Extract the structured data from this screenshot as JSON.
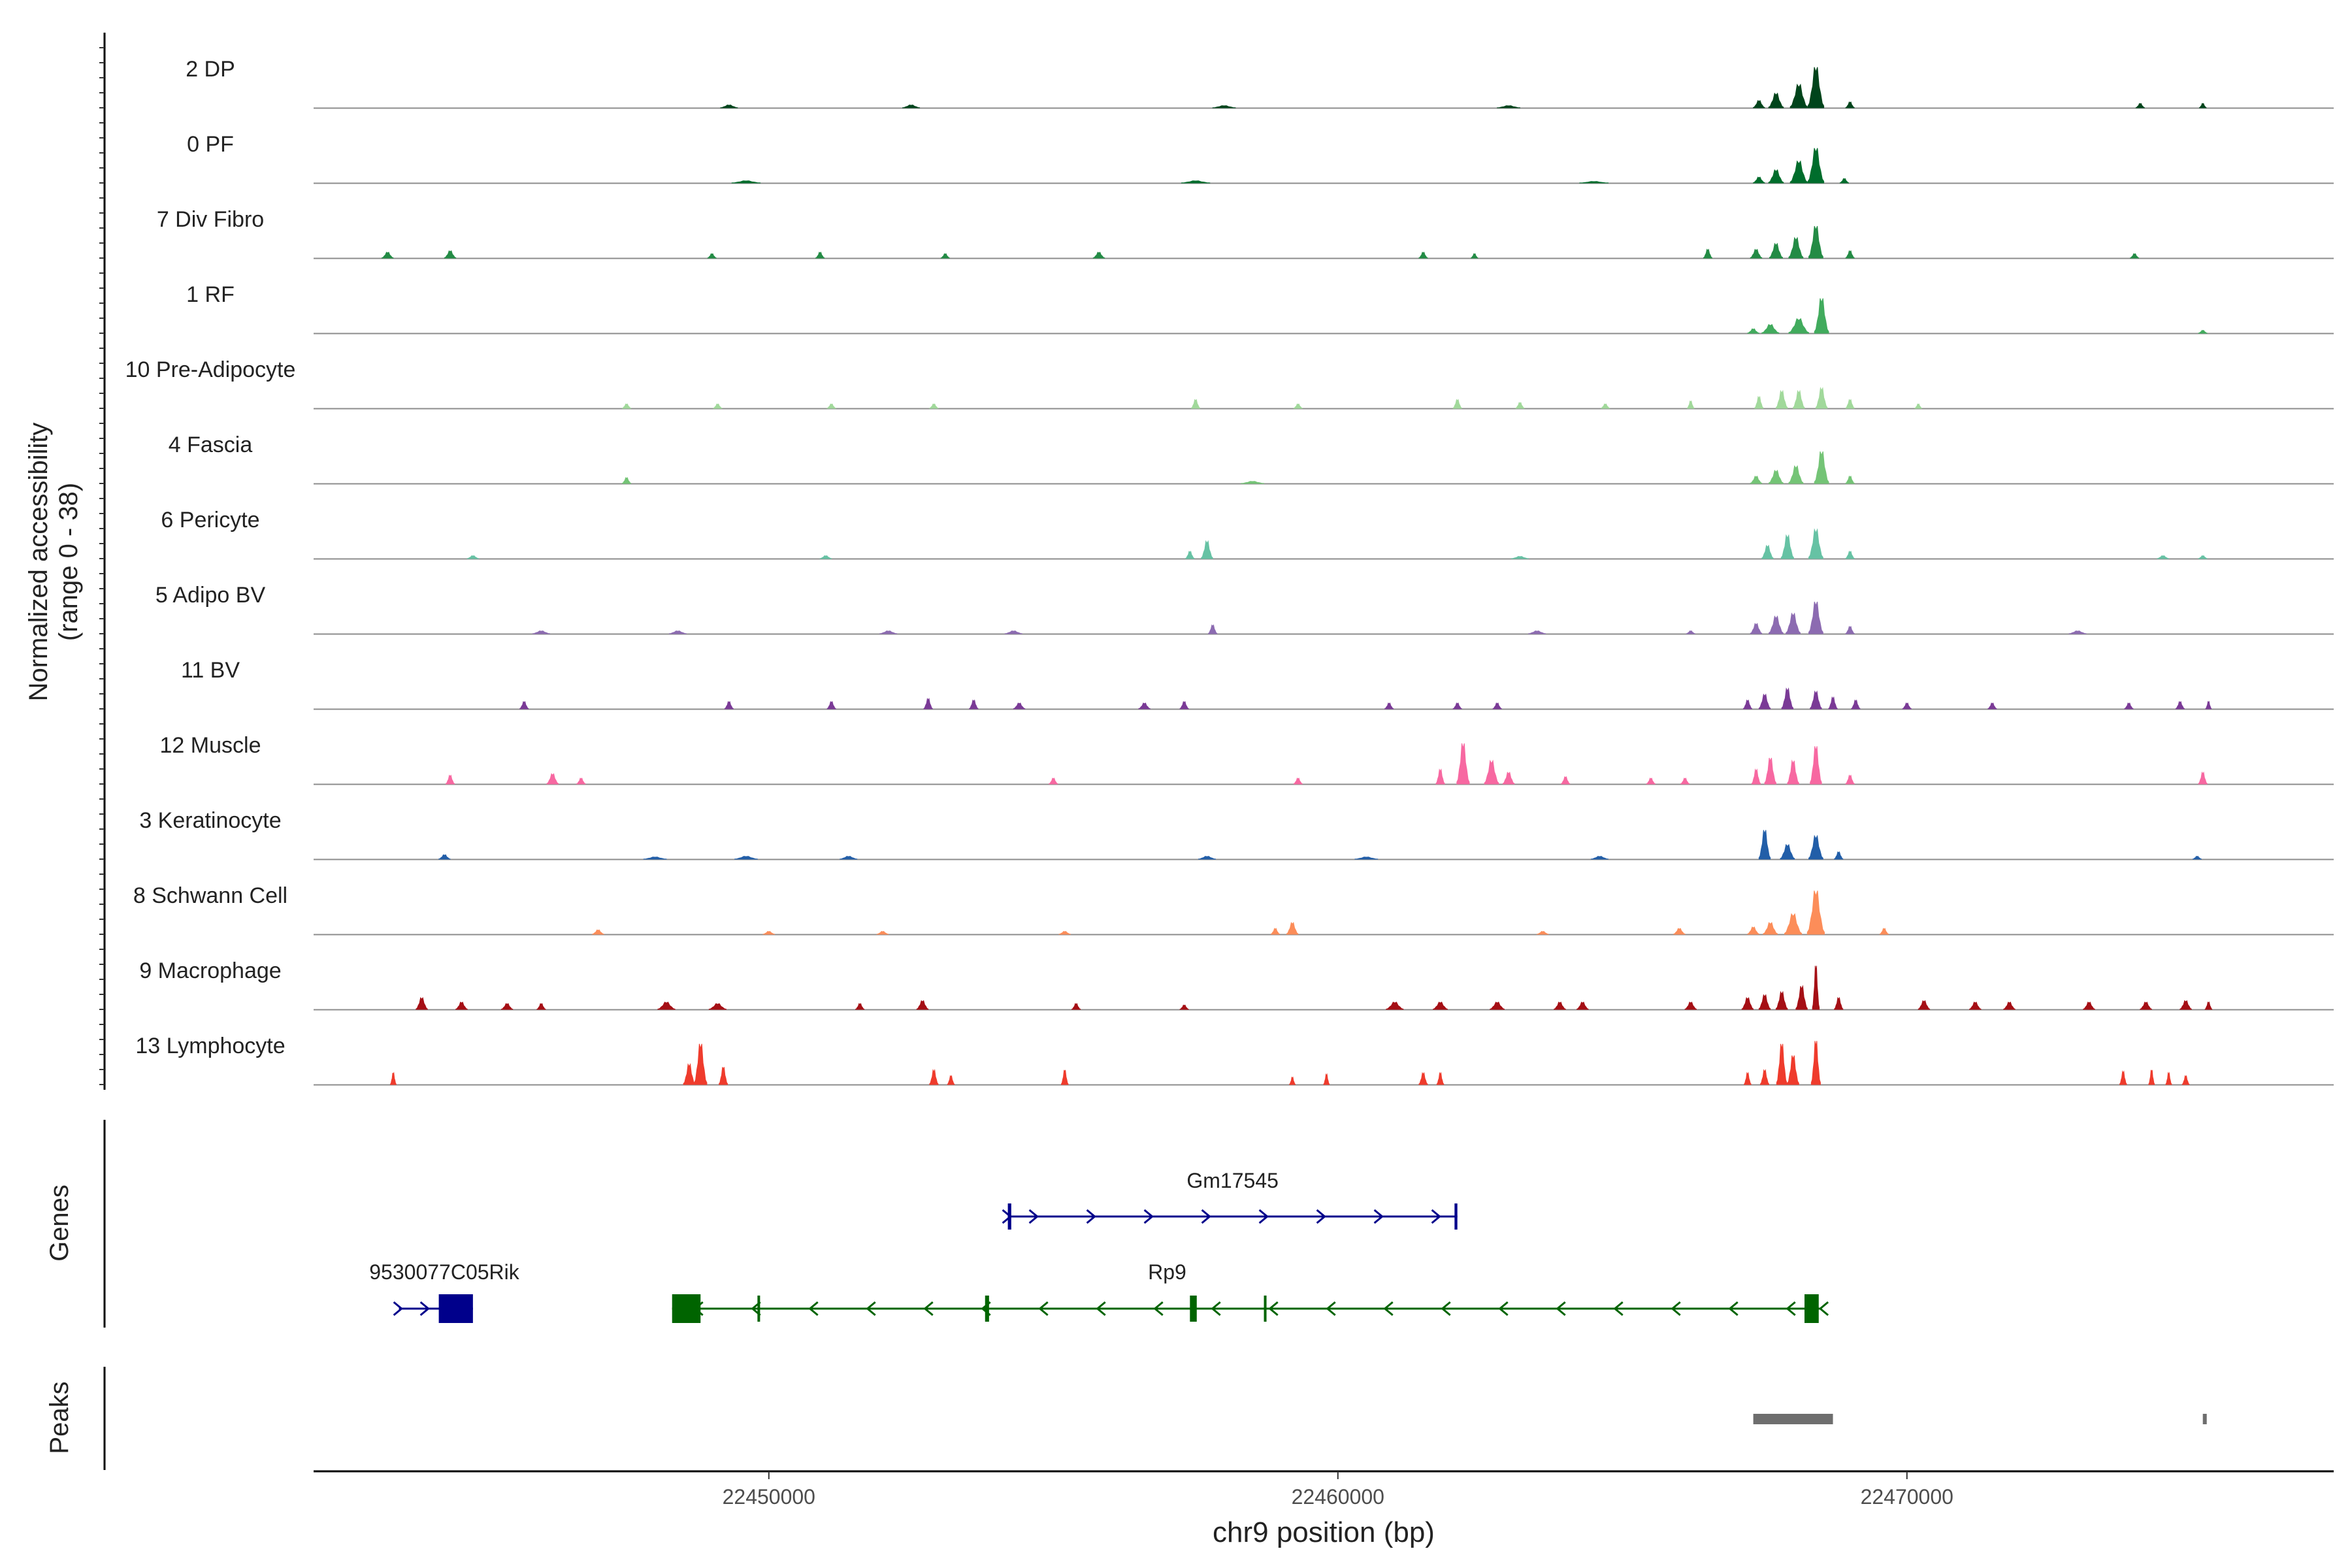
{
  "chart_data": {
    "type": "area",
    "title": "",
    "ylabel": "Normalized accessibility",
    "ylabel_sub": "(range 0 - 38)",
    "xlabel": "chr9 position (bp)",
    "xlim": [
      22442000,
      22477500
    ],
    "ylim": [
      0,
      38
    ],
    "xticks": [
      22450000,
      22460000,
      22470000
    ],
    "xtick_labels": [
      "22450000",
      "22460000",
      "22470000"
    ],
    "tracks": [
      {
        "name": "2 DP",
        "color": "#00441b",
        "peaks": [
          [
            22468400,
            28,
            280
          ],
          [
            22468100,
            16,
            300
          ],
          [
            22467700,
            10,
            260
          ],
          [
            22467400,
            5,
            200
          ],
          [
            22469000,
            4,
            150
          ],
          [
            22452500,
            2,
            300
          ],
          [
            22449300,
            2,
            300
          ],
          [
            22474100,
            3,
            150
          ],
          [
            22475200,
            3,
            120
          ],
          [
            22458000,
            1.5,
            400
          ],
          [
            22463000,
            1.5,
            400
          ]
        ]
      },
      {
        "name": "0 PF",
        "color": "#006d2c",
        "peaks": [
          [
            22468400,
            24,
            280
          ],
          [
            22468100,
            15,
            300
          ],
          [
            22467700,
            9,
            260
          ],
          [
            22467400,
            4,
            200
          ],
          [
            22468900,
            3,
            150
          ],
          [
            22449600,
            1.5,
            500
          ],
          [
            22457500,
            1.5,
            500
          ],
          [
            22464500,
            1,
            500
          ]
        ]
      },
      {
        "name": "7 Div Fibro",
        "color": "#238b45",
        "peaks": [
          [
            22468400,
            22,
            250
          ],
          [
            22468050,
            14,
            250
          ],
          [
            22467700,
            10,
            230
          ],
          [
            22467350,
            6,
            200
          ],
          [
            22469000,
            5,
            150
          ],
          [
            22466500,
            6,
            150
          ],
          [
            22444400,
            5,
            200
          ],
          [
            22443300,
            4,
            200
          ],
          [
            22450900,
            4,
            150
          ],
          [
            22455800,
            4,
            200
          ],
          [
            22453100,
            3,
            150
          ],
          [
            22461500,
            4,
            150
          ],
          [
            22449000,
            3,
            150
          ],
          [
            22474000,
            3,
            150
          ],
          [
            22462400,
            3,
            120
          ]
        ]
      },
      {
        "name": "1 RF",
        "color": "#41ab5d",
        "peaks": [
          [
            22468500,
            24,
            250
          ],
          [
            22468100,
            10,
            350
          ],
          [
            22467600,
            6,
            300
          ],
          [
            22467300,
            3,
            200
          ],
          [
            22475200,
            2,
            150
          ]
        ]
      },
      {
        "name": "10 Pre-Adipocyte",
        "color": "#a1d99b",
        "peaks": [
          [
            22468500,
            14,
            200
          ],
          [
            22468100,
            12,
            200
          ],
          [
            22467800,
            12,
            200
          ],
          [
            22467400,
            8,
            150
          ],
          [
            22469000,
            6,
            150
          ],
          [
            22457500,
            6,
            150
          ],
          [
            22462100,
            6,
            150
          ],
          [
            22463200,
            4,
            150
          ],
          [
            22466200,
            5,
            120
          ],
          [
            22447500,
            3,
            150
          ],
          [
            22449100,
            3,
            150
          ],
          [
            22451100,
            3,
            150
          ],
          [
            22452900,
            3,
            150
          ],
          [
            22459300,
            3,
            150
          ],
          [
            22464700,
            3,
            150
          ],
          [
            22470200,
            3,
            120
          ]
        ]
      },
      {
        "name": "4 Fascia",
        "color": "#74c476",
        "peaks": [
          [
            22468500,
            22,
            250
          ],
          [
            22468050,
            12,
            250
          ],
          [
            22467700,
            9,
            250
          ],
          [
            22467350,
            5,
            200
          ],
          [
            22469000,
            5,
            150
          ],
          [
            22447500,
            4,
            150
          ],
          [
            22458500,
            1.5,
            400
          ]
        ]
      },
      {
        "name": "6 Pericyte",
        "color": "#66c2a4",
        "peaks": [
          [
            22468400,
            20,
            250
          ],
          [
            22467900,
            16,
            220
          ],
          [
            22467550,
            9,
            200
          ],
          [
            22469000,
            5,
            150
          ],
          [
            22457700,
            12,
            200
          ],
          [
            22457400,
            5,
            150
          ],
          [
            22444800,
            2,
            200
          ],
          [
            22451000,
            2,
            200
          ],
          [
            22474500,
            2,
            200
          ],
          [
            22475200,
            2,
            150
          ],
          [
            22463200,
            1.5,
            300
          ]
        ]
      },
      {
        "name": "5 Adipo BV",
        "color": "#8c6bb1",
        "peaks": [
          [
            22468400,
            22,
            250
          ],
          [
            22468000,
            14,
            250
          ],
          [
            22467700,
            12,
            250
          ],
          [
            22467350,
            7,
            200
          ],
          [
            22469000,
            5,
            150
          ],
          [
            22457800,
            6,
            150
          ],
          [
            22452100,
            2,
            300
          ],
          [
            22454300,
            2,
            300
          ],
          [
            22448400,
            2,
            300
          ],
          [
            22463500,
            2,
            300
          ],
          [
            22446000,
            2,
            300
          ],
          [
            22473000,
            2,
            300
          ],
          [
            22466200,
            2,
            150
          ]
        ]
      },
      {
        "name": "11 BV",
        "color": "#7a3a96",
        "peaks": [
          [
            22467900,
            14,
            200
          ],
          [
            22468400,
            12,
            200
          ],
          [
            22467500,
            10,
            200
          ],
          [
            22468700,
            8,
            150
          ],
          [
            22469100,
            6,
            150
          ],
          [
            22467200,
            6,
            150
          ],
          [
            22452800,
            7,
            150
          ],
          [
            22453600,
            6,
            150
          ],
          [
            22445700,
            5,
            150
          ],
          [
            22449300,
            5,
            150
          ],
          [
            22451100,
            5,
            150
          ],
          [
            22454400,
            4,
            200
          ],
          [
            22456600,
            4,
            200
          ],
          [
            22457300,
            5,
            150
          ],
          [
            22460900,
            4,
            150
          ],
          [
            22462100,
            4,
            150
          ],
          [
            22462800,
            4,
            150
          ],
          [
            22470000,
            4,
            150
          ],
          [
            22471500,
            4,
            150
          ],
          [
            22473900,
            4,
            150
          ],
          [
            22474800,
            5,
            150
          ],
          [
            22475300,
            5,
            100
          ]
        ]
      },
      {
        "name": "12 Muscle",
        "color": "#f768a1",
        "peaks": [
          [
            22462200,
            28,
            220
          ],
          [
            22462700,
            16,
            250
          ],
          [
            22463000,
            8,
            200
          ],
          [
            22461800,
            10,
            150
          ],
          [
            22468400,
            26,
            200
          ],
          [
            22468000,
            16,
            200
          ],
          [
            22467600,
            18,
            200
          ],
          [
            22467350,
            10,
            150
          ],
          [
            22469000,
            6,
            150
          ],
          [
            22444400,
            6,
            150
          ],
          [
            22446200,
            7,
            200
          ],
          [
            22446700,
            4,
            150
          ],
          [
            22459300,
            4,
            150
          ],
          [
            22455000,
            4,
            150
          ],
          [
            22464000,
            5,
            150
          ],
          [
            22465500,
            4,
            150
          ],
          [
            22466100,
            4,
            150
          ],
          [
            22475200,
            8,
            150
          ]
        ]
      },
      {
        "name": "3 Keratinocyte",
        "color": "#225ea8",
        "peaks": [
          [
            22467500,
            20,
            200
          ],
          [
            22468400,
            16,
            250
          ],
          [
            22467900,
            10,
            250
          ],
          [
            22468800,
            5,
            150
          ],
          [
            22444300,
            3,
            200
          ],
          [
            22449600,
            2,
            400
          ],
          [
            22451400,
            2,
            300
          ],
          [
            22457700,
            2,
            300
          ],
          [
            22464600,
            2,
            300
          ],
          [
            22475100,
            2,
            150
          ],
          [
            22448000,
            1.5,
            400
          ],
          [
            22460500,
            1.5,
            400
          ]
        ]
      },
      {
        "name": "8 Schwann Cell",
        "color": "#fc8d59",
        "peaks": [
          [
            22468400,
            30,
            300
          ],
          [
            22468000,
            14,
            300
          ],
          [
            22467600,
            8,
            250
          ],
          [
            22467300,
            5,
            200
          ],
          [
            22469600,
            4,
            150
          ],
          [
            22459200,
            8,
            200
          ],
          [
            22458900,
            4,
            150
          ],
          [
            22447000,
            3,
            200
          ],
          [
            22450000,
            2,
            200
          ],
          [
            22452000,
            2,
            200
          ],
          [
            22455200,
            2,
            200
          ],
          [
            22466000,
            4,
            200
          ],
          [
            22463600,
            2,
            200
          ]
        ]
      },
      {
        "name": "9 Macrophage",
        "color": "#a50f15",
        "peaks": [
          [
            22468400,
            30,
            120
          ],
          [
            22468150,
            16,
            200
          ],
          [
            22467800,
            12,
            200
          ],
          [
            22467500,
            10,
            200
          ],
          [
            22467200,
            8,
            200
          ],
          [
            22468800,
            8,
            150
          ],
          [
            22443900,
            8,
            200
          ],
          [
            22444600,
            5,
            200
          ],
          [
            22445400,
            4,
            200
          ],
          [
            22446000,
            4,
            150
          ],
          [
            22448200,
            5,
            300
          ],
          [
            22449100,
            4,
            300
          ],
          [
            22452700,
            6,
            200
          ],
          [
            22451600,
            4,
            150
          ],
          [
            22455400,
            4,
            150
          ],
          [
            22457300,
            3,
            150
          ],
          [
            22461000,
            5,
            300
          ],
          [
            22461800,
            5,
            250
          ],
          [
            22462800,
            5,
            250
          ],
          [
            22463900,
            5,
            200
          ],
          [
            22464300,
            5,
            200
          ],
          [
            22466200,
            5,
            200
          ],
          [
            22470300,
            6,
            200
          ],
          [
            22471200,
            5,
            200
          ],
          [
            22471800,
            5,
            200
          ],
          [
            22473200,
            5,
            200
          ],
          [
            22474200,
            5,
            200
          ],
          [
            22474900,
            6,
            200
          ],
          [
            22475300,
            5,
            120
          ]
        ]
      },
      {
        "name": "13 Lymphocyte",
        "color": "#ef3b2c",
        "peaks": [
          [
            22468400,
            30,
            160
          ],
          [
            22467800,
            28,
            180
          ],
          [
            22468000,
            20,
            200
          ],
          [
            22467500,
            10,
            150
          ],
          [
            22467200,
            8,
            120
          ],
          [
            22448800,
            28,
            220
          ],
          [
            22448600,
            14,
            200
          ],
          [
            22449200,
            12,
            150
          ],
          [
            22443400,
            8,
            100
          ],
          [
            22452900,
            10,
            150
          ],
          [
            22453200,
            6,
            120
          ],
          [
            22455200,
            10,
            120
          ],
          [
            22459200,
            5,
            100
          ],
          [
            22459800,
            7,
            100
          ],
          [
            22461500,
            8,
            150
          ],
          [
            22461800,
            8,
            120
          ],
          [
            22473800,
            9,
            120
          ],
          [
            22474300,
            10,
            100
          ],
          [
            22474600,
            8,
            100
          ],
          [
            22474900,
            6,
            120
          ]
        ]
      }
    ],
    "genes": [
      {
        "name": "Gm17545",
        "strand": "+",
        "color": "#00008b",
        "start": 22454200,
        "end": 22462100,
        "exons": [
          [
            22454200,
            22454260
          ],
          [
            22462050,
            22462100
          ]
        ]
      },
      {
        "name": "9530077C05Rik",
        "strand": "+",
        "color": "#00008b",
        "start": 22443500,
        "end": 22444800,
        "exons": [
          [
            22444200,
            22444800
          ]
        ]
      },
      {
        "name": "Rp9",
        "strand": "-",
        "color": "#006400",
        "start": 22448300,
        "end": 22468500,
        "exons": [
          [
            22448300,
            22448800
          ],
          [
            22449800,
            22449840
          ],
          [
            22453800,
            22453870
          ],
          [
            22457400,
            22457520
          ],
          [
            22458700,
            22458720
          ],
          [
            22468200,
            22468450
          ]
        ]
      }
    ],
    "peaks_track": {
      "label": "Peaks",
      "color": "#6e6e6e",
      "regions": [
        [
          22467300,
          22468700
        ],
        [
          22475200,
          22475260
        ]
      ]
    },
    "panels": {
      "genes_label": "Genes",
      "peaks_label": "Peaks"
    }
  }
}
